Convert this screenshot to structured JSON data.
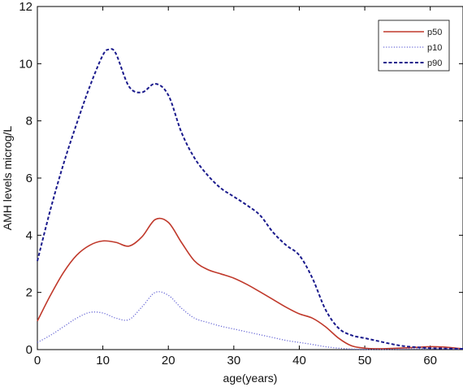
{
  "chart_data": {
    "type": "line",
    "title": "",
    "xlabel": "age(years)",
    "ylabel": "AMH levels microg/L",
    "xlim": [
      0,
      65
    ],
    "ylim": [
      0,
      12
    ],
    "xticks": [
      "0",
      "10",
      "20",
      "30",
      "40",
      "50",
      "60"
    ],
    "yticks": [
      "0",
      "2",
      "4",
      "6",
      "8",
      "10",
      "12"
    ],
    "grid": false,
    "legend_position": "top-right",
    "series": [
      {
        "name": "p50",
        "color": "#c0392b",
        "style": "solid",
        "x": [
          0,
          2,
          4,
          6,
          8,
          10,
          12,
          14,
          16,
          18,
          20,
          22,
          24,
          26,
          28,
          30,
          32,
          34,
          36,
          38,
          40,
          42,
          44,
          46,
          48,
          50,
          52,
          54,
          56,
          58,
          60,
          62,
          64,
          65
        ],
        "y": [
          1.0,
          1.9,
          2.7,
          3.3,
          3.65,
          3.8,
          3.75,
          3.62,
          3.95,
          4.55,
          4.45,
          3.75,
          3.1,
          2.8,
          2.65,
          2.5,
          2.28,
          2.02,
          1.75,
          1.48,
          1.25,
          1.1,
          0.8,
          0.4,
          0.13,
          0.05,
          0.03,
          0.04,
          0.06,
          0.08,
          0.1,
          0.09,
          0.05,
          0.03
        ]
      },
      {
        "name": "p10",
        "color": "#6a6ad6",
        "style": "dotted",
        "x": [
          0,
          2,
          4,
          6,
          8,
          10,
          12,
          14,
          16,
          18,
          20,
          22,
          24,
          26,
          28,
          30,
          32,
          34,
          36,
          38,
          40,
          42,
          44,
          46,
          48,
          50,
          52,
          54,
          56,
          58,
          60,
          62,
          64,
          65
        ],
        "y": [
          0.25,
          0.5,
          0.8,
          1.1,
          1.3,
          1.28,
          1.1,
          1.05,
          1.5,
          2.0,
          1.9,
          1.45,
          1.1,
          0.95,
          0.82,
          0.72,
          0.62,
          0.52,
          0.42,
          0.32,
          0.25,
          0.18,
          0.1,
          0.05,
          0.02,
          0.01,
          0.01,
          0.01,
          0.02,
          0.03,
          0.03,
          0.03,
          0.02,
          0.02
        ]
      },
      {
        "name": "p90",
        "color": "#1a1a8c",
        "style": "dashed",
        "x": [
          0,
          2,
          4,
          6,
          8,
          10,
          11,
          12,
          14,
          16,
          18,
          20,
          22,
          24,
          26,
          28,
          30,
          32,
          34,
          36,
          38,
          40,
          42,
          44,
          46,
          48,
          50,
          52,
          54,
          56,
          58,
          60,
          62,
          64,
          65
        ],
        "y": [
          3.1,
          4.9,
          6.5,
          7.9,
          9.2,
          10.3,
          10.5,
          10.35,
          9.2,
          9.0,
          9.3,
          8.9,
          7.6,
          6.7,
          6.1,
          5.65,
          5.35,
          5.05,
          4.7,
          4.1,
          3.65,
          3.3,
          2.5,
          1.4,
          0.75,
          0.5,
          0.4,
          0.3,
          0.2,
          0.12,
          0.08,
          0.05,
          0.04,
          0.03,
          0.03
        ]
      }
    ]
  }
}
